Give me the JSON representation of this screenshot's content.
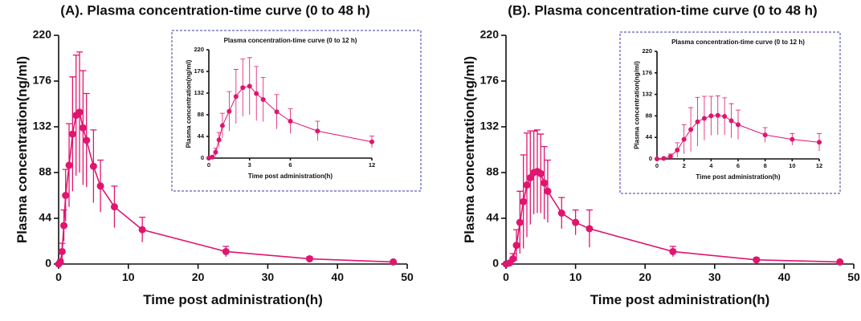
{
  "chart_data": [
    {
      "type": "line",
      "title": "(A). Plasma concentration-time curve (0 to 48 h)",
      "xlabel": "Time post administration(h)",
      "ylabel": "Plasma concentration(ng/ml)",
      "x": [
        0,
        0.25,
        0.5,
        0.75,
        1,
        1.5,
        2,
        2.5,
        3,
        3.5,
        4,
        5,
        6,
        8,
        12,
        24,
        36,
        48
      ],
      "series": [
        {
          "color": "#e0156f",
          "values": [
            0,
            2,
            12,
            37,
            66,
            95,
            125,
            143,
            146,
            131,
            119,
            94,
            75,
            55,
            33,
            12,
            5,
            2
          ],
          "errors": [
            0,
            2,
            8,
            15,
            25,
            40,
            55,
            58,
            58,
            55,
            45,
            35,
            25,
            20,
            12,
            5,
            2,
            1
          ]
        }
      ],
      "xlim": [
        0,
        50
      ],
      "xticks": [
        0,
        10,
        20,
        30,
        40,
        50
      ],
      "ylim": [
        0,
        220
      ],
      "yticks": [
        0,
        44,
        88,
        132,
        176,
        220
      ],
      "inset": {
        "title": "Plasma concentration-time curve (0 to 12 h)",
        "xlabel": "Time post administration(h)",
        "ylabel": "Plasma concentration(ng/ml)",
        "xlim": [
          0,
          12
        ],
        "xticks": [
          0,
          3,
          6,
          12
        ],
        "ylim": [
          0,
          220
        ],
        "yticks": [
          0,
          44,
          88,
          132,
          176,
          220
        ]
      }
    },
    {
      "type": "line",
      "title": "(B). Plasma concentration-time curve (0 to 48 h)",
      "xlabel": "Time post administration(h)",
      "ylabel": "Plasma concentration(ng/ml)",
      "x": [
        0,
        0.5,
        1,
        1.5,
        2,
        2.5,
        3,
        3.5,
        4,
        4.5,
        5,
        5.5,
        6,
        8,
        10,
        12,
        24,
        36,
        48
      ],
      "series": [
        {
          "color": "#e0156f",
          "values": [
            0,
            1,
            5,
            18,
            40,
            60,
            76,
            83,
            88,
            89,
            87,
            78,
            70,
            49,
            40,
            34,
            12,
            4,
            2
          ],
          "errors": [
            0,
            1,
            5,
            15,
            30,
            45,
            50,
            45,
            40,
            40,
            38,
            35,
            30,
            15,
            12,
            18,
            5,
            2,
            1
          ]
        }
      ],
      "xlim": [
        0,
        50
      ],
      "xticks": [
        0,
        10,
        20,
        30,
        40,
        50
      ],
      "ylim": [
        0,
        220
      ],
      "yticks": [
        0,
        44,
        88,
        132,
        176,
        220
      ],
      "inset": {
        "title": "Plasma concentration-time curve (0 to 12 h)",
        "xlabel": "Time post administration(h)",
        "ylabel": "Plasma concentration(ng/ml)",
        "xlim": [
          0,
          12
        ],
        "xticks": [
          0,
          2,
          4,
          6,
          8,
          10,
          12
        ],
        "ylim": [
          0,
          220
        ],
        "yticks": [
          0,
          44,
          88,
          132,
          176,
          220
        ]
      }
    }
  ]
}
